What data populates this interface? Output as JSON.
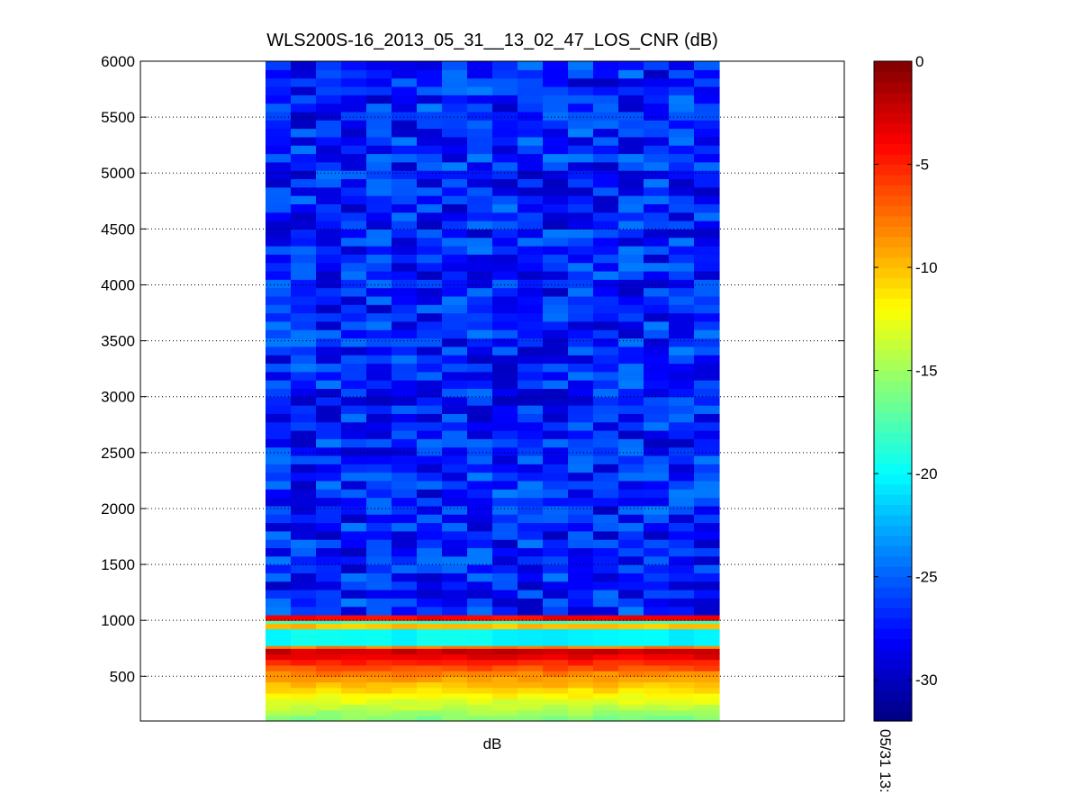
{
  "chart_data": {
    "type": "heatmap",
    "title": "WLS200S-16_2013_05_31__13_02_47_LOS_CNR (dB)",
    "xlabel": "dB",
    "ylabel": "",
    "ylim": [
      100,
      6000
    ],
    "y_ticks": [
      500,
      1000,
      1500,
      2000,
      2500,
      3000,
      3500,
      4000,
      4500,
      5000,
      5500,
      6000
    ],
    "grid": true,
    "colormap": "jet",
    "colorbar": {
      "clim": [
        -32,
        0
      ],
      "ticks": [
        0,
        -5,
        -10,
        -15,
        -20,
        -25,
        -30
      ],
      "time_label": "05/31 13:"
    },
    "columns": 18,
    "profile": [
      {
        "range": [
          100,
          150
        ],
        "cnr": -16
      },
      {
        "range": [
          150,
          200
        ],
        "cnr": -15
      },
      {
        "range": [
          200,
          250
        ],
        "cnr": -14
      },
      {
        "range": [
          250,
          300
        ],
        "cnr": -13
      },
      {
        "range": [
          300,
          350
        ],
        "cnr": -12
      },
      {
        "range": [
          350,
          400
        ],
        "cnr": -11
      },
      {
        "range": [
          400,
          450
        ],
        "cnr": -10
      },
      {
        "range": [
          450,
          500
        ],
        "cnr": -9
      },
      {
        "range": [
          500,
          550
        ],
        "cnr": -8
      },
      {
        "range": [
          550,
          600
        ],
        "cnr": -6.5
      },
      {
        "range": [
          600,
          650
        ],
        "cnr": -5
      },
      {
        "range": [
          650,
          700
        ],
        "cnr": -3.5
      },
      {
        "range": [
          700,
          750
        ],
        "cnr": -2.5
      },
      {
        "range": [
          750,
          775
        ],
        "cnr": -8
      },
      {
        "range": [
          775,
          925
        ],
        "cnr": -20
      },
      {
        "range": [
          925,
          975
        ],
        "cnr": -10
      },
      {
        "range": [
          975,
          1000
        ],
        "cnr": -18
      },
      {
        "range": [
          1000,
          1050
        ],
        "cnr": -4
      },
      {
        "range": [
          1050,
          6000
        ],
        "cnr": -27
      }
    ]
  }
}
